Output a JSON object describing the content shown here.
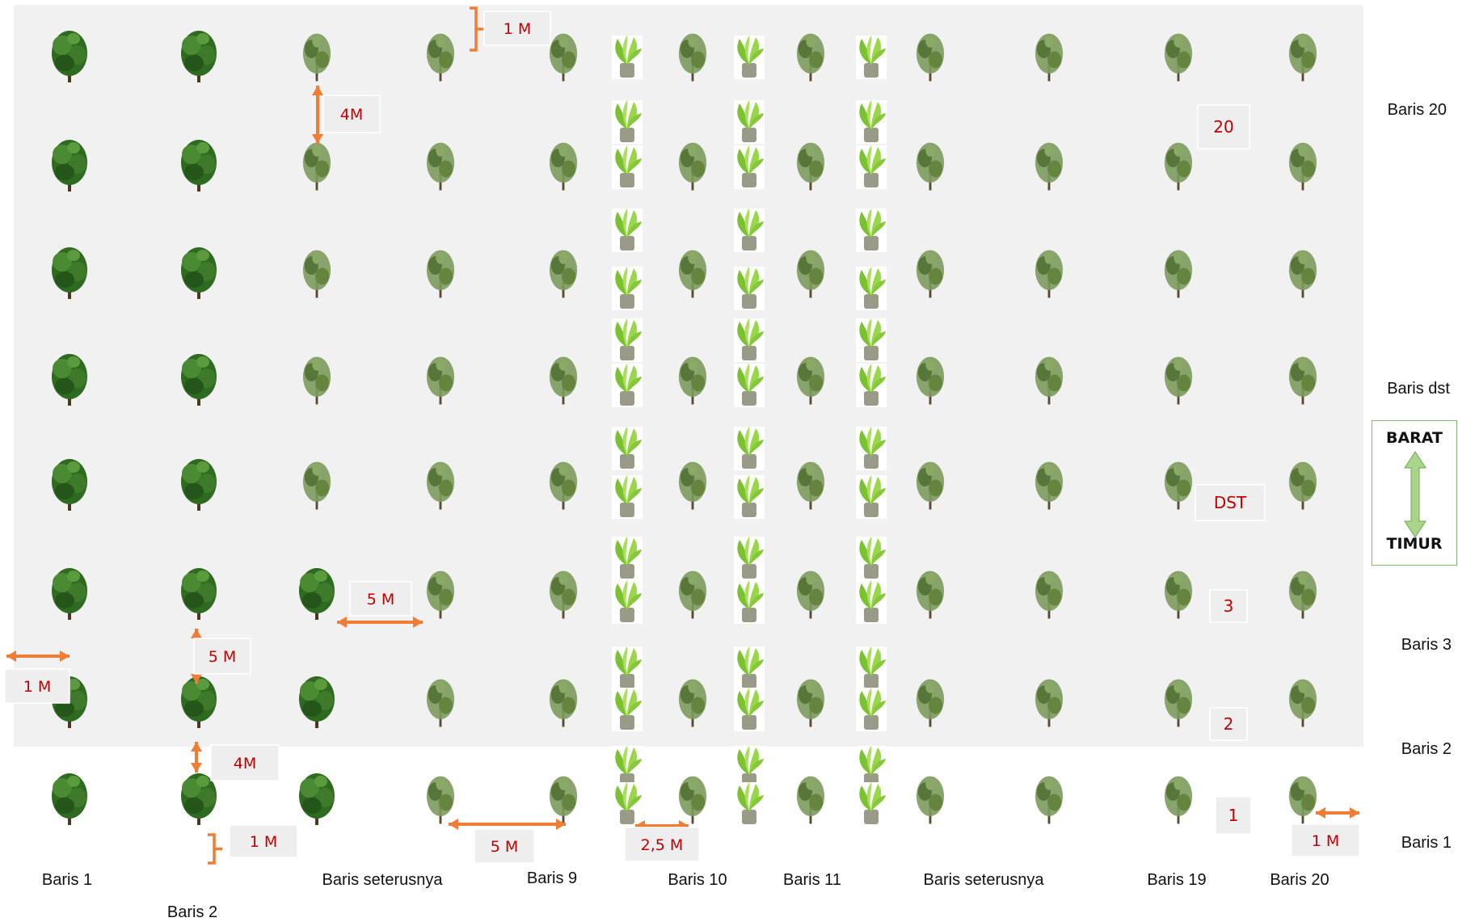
{
  "diagram": {
    "column_labels": [
      "Baris 1",
      "Baris 2",
      "Baris seterusnya",
      "Baris 9",
      "Baris 10",
      "Baris 11",
      "Baris seterusnya",
      "Baris 19",
      "Baris 20"
    ],
    "row_labels": [
      "Baris 20",
      "Baris dst",
      "Baris 3",
      "Baris 2",
      "Baris 1"
    ],
    "compass": {
      "top": "BARAT",
      "bottom": "TIMUR"
    },
    "spacing_labels": {
      "top_margin": "1 M",
      "row_spacing": "4M",
      "bottom_margin": "1 M",
      "left_margin": "1 M",
      "row_spacing_2": "5 M",
      "row_spacing_3": "4M",
      "column_spacing": "5 M",
      "column_spacing_2": "5 M",
      "palm_spacing": "2,5 M",
      "right_margin": "1 M"
    },
    "row_number_labels": [
      "20",
      "DST",
      "3",
      "2",
      "1"
    ],
    "colors": {
      "background": "#f1f1f1",
      "arrow": "#ef7d35",
      "label_text": "#c00000",
      "tree_dark": "#3f7a2a",
      "tree_light": "#6f8f4a",
      "palm": "#93d43c",
      "compass_arrow": "#a9d48a"
    },
    "icons": [
      "broadleaf-tree-icon",
      "sparse-tree-icon",
      "palm-seedling-icon",
      "double-arrow-icon"
    ]
  }
}
